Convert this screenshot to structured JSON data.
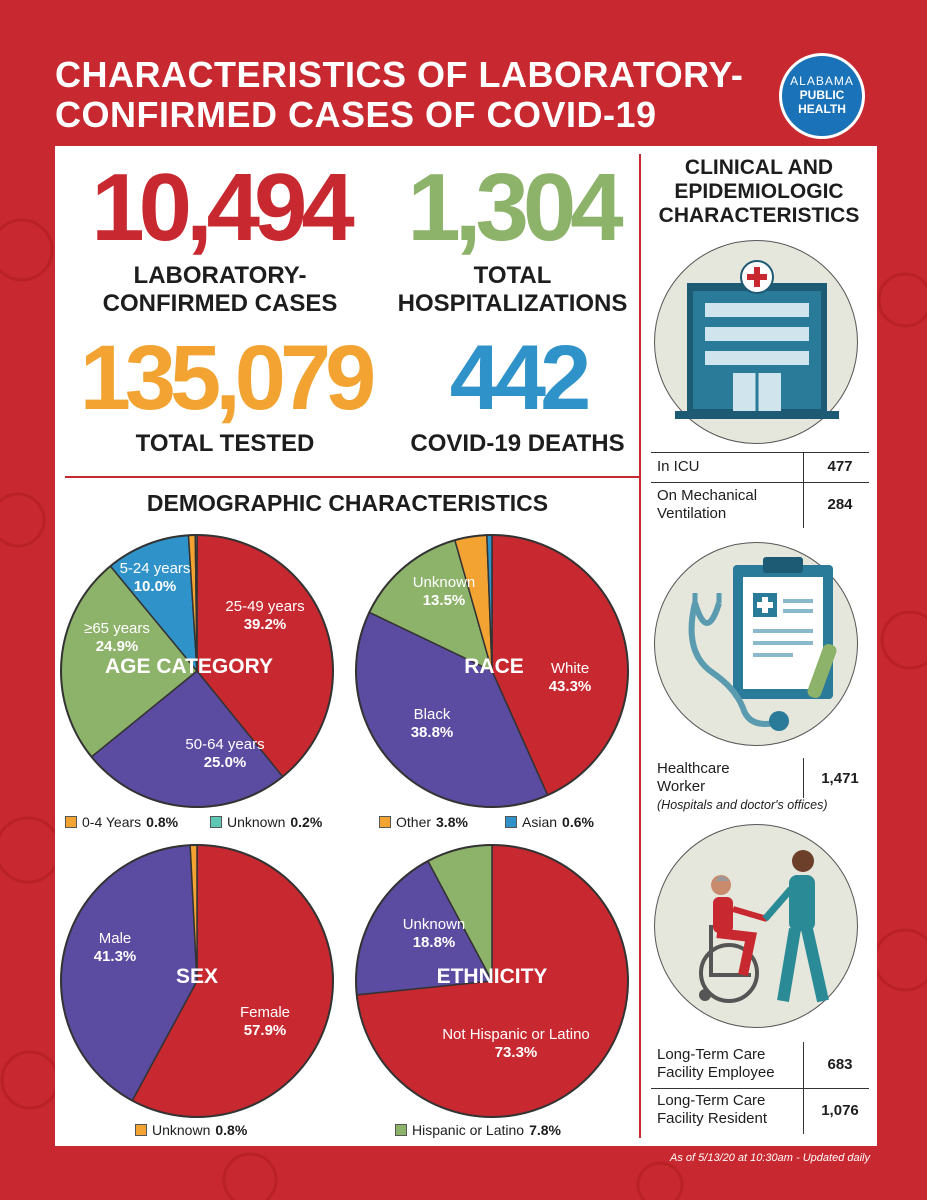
{
  "header": {
    "title_line1": "CHARACTERISTICS OF LABORATORY-",
    "title_line2": "CONFIRMED CASES OF COVID-19",
    "logo_line1": "ALABAMA",
    "logo_line2": "PUBLIC",
    "logo_line3": "HEALTH"
  },
  "stats": {
    "cases": {
      "value": "10,494",
      "label1": "LABORATORY-",
      "label2": "CONFIRMED CASES",
      "color": "#c8282f"
    },
    "hospitalizations": {
      "value": "1,304",
      "label1": "TOTAL",
      "label2": "HOSPITALIZATIONS",
      "color": "#8db26a"
    },
    "tested": {
      "value": "135,079",
      "label1": "TOTAL TESTED",
      "color": "#f2a332"
    },
    "deaths": {
      "value": "442",
      "label1": "COVID-19 DEATHS",
      "color": "#2f93c9"
    }
  },
  "demographics": {
    "title": "DEMOGRAPHIC CHARACTERISTICS"
  },
  "chart_data": [
    {
      "type": "pie",
      "title": "AGE CATEGORY",
      "slices": [
        {
          "label": "25-49 years",
          "value": 39.2,
          "display": "39.2%",
          "color": "#c8282f"
        },
        {
          "label": "50-64 years",
          "value": 25.0,
          "display": "25.0%",
          "color": "#5b4ba1"
        },
        {
          "label": "≥65 years",
          "value": 24.9,
          "display": "24.9%",
          "color": "#8db26a"
        },
        {
          "label": "5-24 years",
          "value": 10.0,
          "display": "10.0%",
          "color": "#2f93c9"
        },
        {
          "label": "0-4 Years",
          "value": 0.8,
          "display": "0.8%",
          "color": "#f2a332"
        },
        {
          "label": "Unknown",
          "value": 0.2,
          "display": "0.2%",
          "color": "#5fc8b5"
        }
      ]
    },
    {
      "type": "pie",
      "title": "RACE",
      "slices": [
        {
          "label": "White",
          "value": 43.3,
          "display": "43.3%",
          "color": "#c8282f"
        },
        {
          "label": "Black",
          "value": 38.8,
          "display": "38.8%",
          "color": "#5b4ba1"
        },
        {
          "label": "Unknown",
          "value": 13.5,
          "display": "13.5%",
          "color": "#8db26a"
        },
        {
          "label": "Other",
          "value": 3.8,
          "display": "3.8%",
          "color": "#f2a332"
        },
        {
          "label": "Asian",
          "value": 0.6,
          "display": "0.6%",
          "color": "#2f93c9"
        }
      ]
    },
    {
      "type": "pie",
      "title": "SEX",
      "slices": [
        {
          "label": "Female",
          "value": 57.9,
          "display": "57.9%",
          "color": "#c8282f"
        },
        {
          "label": "Male",
          "value": 41.3,
          "display": "41.3%",
          "color": "#5b4ba1"
        },
        {
          "label": "Unknown",
          "value": 0.8,
          "display": "0.8%",
          "color": "#f2a332"
        }
      ]
    },
    {
      "type": "pie",
      "title": "ETHNICITY",
      "slices": [
        {
          "label": "Not Hispanic or Latino",
          "value": 73.3,
          "display": "73.3%",
          "color": "#c8282f"
        },
        {
          "label": "Unknown",
          "value": 18.8,
          "display": "18.8%",
          "color": "#5b4ba1"
        },
        {
          "label": "Hispanic or Latino",
          "value": 7.8,
          "display": "7.8%",
          "color": "#8db26a"
        }
      ]
    }
  ],
  "clinical": {
    "title_line1": "CLINICAL AND",
    "title_line2": "EPIDEMIOLOGIC",
    "title_line3": "CHARACTERISTICS",
    "icu_label": "In ICU",
    "icu_value": "477",
    "vent_label1": "On Mechanical",
    "vent_label2": "Ventilation",
    "vent_value": "284",
    "hcw_label1": "Healthcare",
    "hcw_label2": "Worker",
    "hcw_note": "(Hospitals and doctor's offices)",
    "hcw_value": "1,471",
    "ltc_emp_label1": "Long-Term Care",
    "ltc_emp_label2": "Facility Employee",
    "ltc_emp_value": "683",
    "ltc_res_label1": "Long-Term Care",
    "ltc_res_label2": "Facility Resident",
    "ltc_res_value": "1,076"
  },
  "footer": {
    "note": "As of 5/13/20 at 10:30am - Updated daily"
  }
}
